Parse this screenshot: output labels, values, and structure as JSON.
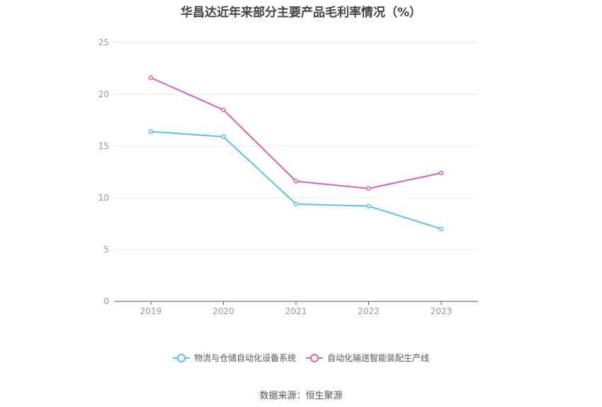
{
  "chart_data": {
    "type": "line",
    "title": "华昌达近年来部分主要产品毛利率情况（%）",
    "categories": [
      "2019",
      "2020",
      "2021",
      "2022",
      "2023"
    ],
    "ylim": [
      0,
      25
    ],
    "yticks": [
      0,
      5,
      10,
      15,
      20,
      25
    ],
    "grid": true,
    "legend_position": "bottom",
    "series": [
      {
        "name": "物流与仓储自动化设备系统",
        "color": "#5bc0eb",
        "values": [
          16.4,
          15.9,
          9.4,
          9.2,
          7.0
        ]
      },
      {
        "name": "自动化输送智能装配生产线",
        "color": "#d466a8",
        "values": [
          21.6,
          18.5,
          11.6,
          10.9,
          12.4
        ]
      }
    ],
    "source": "数据来源：恒生聚源"
  }
}
